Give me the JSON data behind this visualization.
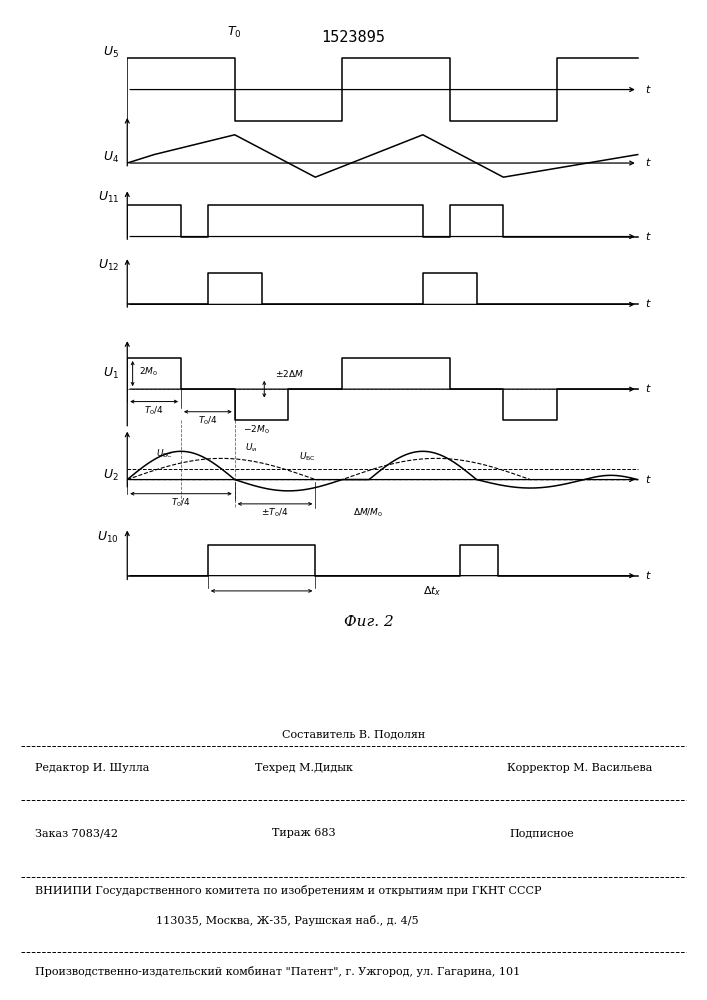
{
  "title": "1523895",
  "fig_label": "Фиг. 2",
  "bg_color": "#ffffff",
  "line_color": "#000000",
  "footer": {
    "line1_center": "Составитель В. Подолян",
    "line2_left": "Редактор И. Шулла",
    "line2_center": "Техред М.Дидык",
    "line2_right": "Корректор М. Васильева",
    "line3_left": "Заказ 7083/42",
    "line3_center": "Тираж 683",
    "line3_right": "Подписное",
    "line4": "ВНИИПИ Государственного комитета по изобретениям и открытиям при ГКНТ СССР",
    "line5": "113035, Москва, Ж-35, Раушская наб., д. 4/5",
    "line6": "Производственно-издательский комбинат \"Патент\", г. Ужгород, ул. Гагарина, 101"
  }
}
